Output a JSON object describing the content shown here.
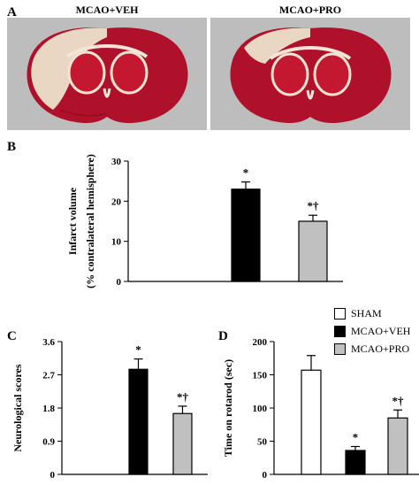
{
  "panel_a": {
    "letter": "A",
    "images": [
      {
        "label": "MCAO+VEH"
      },
      {
        "label": "MCAO+PRO"
      }
    ]
  },
  "panel_letters": {
    "b": "B",
    "c": "C",
    "d": "D"
  },
  "colors": {
    "sham": "#ffffff",
    "veh": "#000000",
    "pro": "#c0c0c0",
    "tissue_red": "#b0112a",
    "tissue_pale": "#ead7c3"
  },
  "legend": [
    {
      "label": "SHAM",
      "color": "#ffffff"
    },
    {
      "label": "MCAO+VEH",
      "color": "#000000"
    },
    {
      "label": "MCAO+PRO",
      "color": "#c0c0c0"
    }
  ],
  "chart_data": [
    {
      "id": "B",
      "type": "bar",
      "ylabel_lines": [
        "Infarct volume",
        "(% contralateral hemisphere)"
      ],
      "ylim": [
        0,
        30
      ],
      "yticks": [
        "0",
        "10",
        "20",
        "30"
      ],
      "yticks_values": [
        0,
        10,
        20,
        30
      ],
      "categories": [
        "SHAM",
        "MCAO+VEH",
        "MCAO+PRO"
      ],
      "values": [
        null,
        23,
        15
      ],
      "errors": [
        null,
        1.8,
        1.5
      ],
      "annotations": [
        "",
        "*",
        "*†"
      ],
      "colors": [
        "#ffffff",
        "#000000",
        "#c0c0c0"
      ]
    },
    {
      "id": "C",
      "type": "bar",
      "ylabel_lines": [
        "Neurological scores"
      ],
      "ylim": [
        0,
        3.6
      ],
      "yticks": [
        "0",
        "0.9",
        "1.8",
        "2.7",
        "3.6"
      ],
      "yticks_values": [
        0,
        0.9,
        1.8,
        2.7,
        3.6
      ],
      "categories": [
        "SHAM",
        "MCAO+VEH",
        "MCAO+PRO"
      ],
      "values": [
        null,
        2.85,
        1.65
      ],
      "errors": [
        null,
        0.28,
        0.2
      ],
      "annotations": [
        "",
        "*",
        "*†"
      ],
      "colors": [
        "#ffffff",
        "#000000",
        "#c0c0c0"
      ]
    },
    {
      "id": "D",
      "type": "bar",
      "ylabel_lines": [
        "Time on rotarod (sec)"
      ],
      "ylim": [
        0,
        200
      ],
      "yticks": [
        "0",
        "50",
        "100",
        "150",
        "200"
      ],
      "yticks_values": [
        0,
        50,
        100,
        150,
        200
      ],
      "categories": [
        "SHAM",
        "MCAO+VEH",
        "MCAO+PRO"
      ],
      "values": [
        157,
        36,
        85
      ],
      "errors": [
        22,
        6,
        12
      ],
      "annotations": [
        "",
        "*",
        "*†"
      ],
      "colors": [
        "#ffffff",
        "#000000",
        "#c0c0c0"
      ]
    }
  ]
}
